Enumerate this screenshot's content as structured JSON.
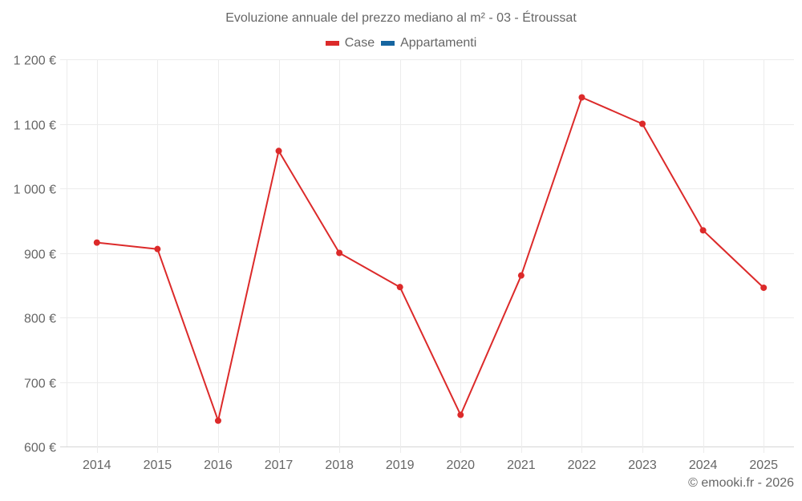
{
  "title": "Evoluzione annuale del prezzo mediano al m² - 03 - Étroussat",
  "legend": [
    {
      "label": "Case",
      "color": "#dc2a2a"
    },
    {
      "label": "Appartamenti",
      "color": "#1565a0"
    }
  ],
  "credit": "© emooki.fr - 2026",
  "chart_data": {
    "type": "line",
    "title": "Evoluzione annuale del prezzo mediano al m² - 03 - Étroussat",
    "xlabel": "",
    "ylabel": "",
    "categories": [
      "2014",
      "2015",
      "2016",
      "2017",
      "2018",
      "2019",
      "2020",
      "2021",
      "2022",
      "2023",
      "2024",
      "2025"
    ],
    "series": [
      {
        "name": "Case",
        "color": "#dc2a2a",
        "values": [
          916,
          906,
          640,
          1058,
          900,
          847,
          649,
          865,
          1141,
          1100,
          935,
          846
        ]
      },
      {
        "name": "Appartamenti",
        "color": "#1565a0",
        "values": []
      }
    ],
    "ylim": [
      600,
      1200
    ],
    "yticks": [
      600,
      700,
      800,
      900,
      1000,
      1100,
      1200
    ],
    "ytick_labels": [
      "600 €",
      "700 €",
      "800 €",
      "900 €",
      "1 000 €",
      "1 100 €",
      "1 200 €"
    ],
    "grid": true,
    "legend_position": "top"
  }
}
